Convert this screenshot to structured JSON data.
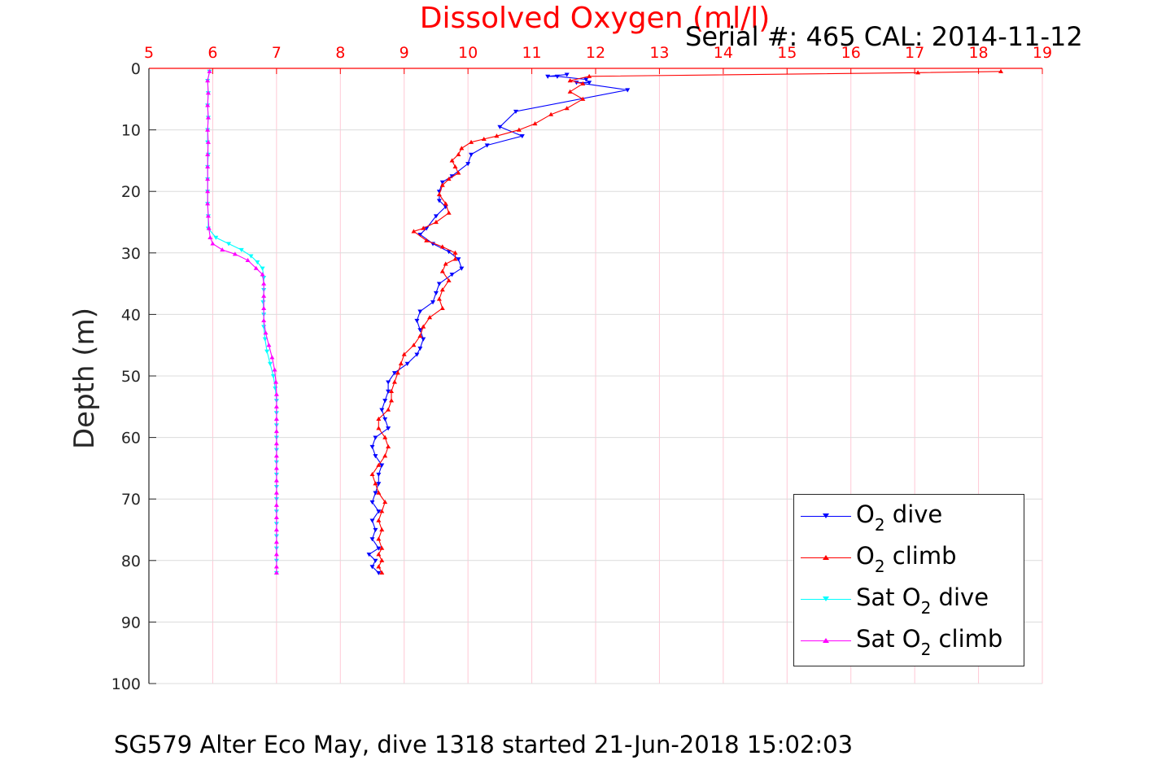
{
  "title": "Dissolved Oxygen (ml/l)",
  "serial": "Serial #: 465  CAL: 2014-11-12",
  "caption": "SG579 Alter Eco May, dive 1318 started 21-Jun-2018 15:02:03",
  "legend": {
    "o2_dive_a": "O",
    "o2_dive_sub": "2",
    "o2_dive_b": " dive",
    "o2_climb_a": "O",
    "o2_climb_sub": "2",
    "o2_climb_b": " climb",
    "sat_dive_a": "Sat O",
    "sat_dive_sub": "2",
    "sat_dive_b": " dive",
    "sat_climb_a": "Sat O",
    "sat_climb_sub": "2",
    "sat_climb_b": " climb"
  },
  "chart_data": {
    "type": "line",
    "title": "Dissolved Oxygen (ml/l)",
    "xlabel": "",
    "ylabel": "Depth (m)",
    "xlim": [
      5,
      19
    ],
    "ylim": [
      0,
      100
    ],
    "y_reversed": true,
    "x_axis_position": "top",
    "x_ticks": [
      5,
      6,
      7,
      8,
      9,
      10,
      11,
      12,
      13,
      14,
      15,
      16,
      17,
      18,
      19
    ],
    "y_ticks": [
      0,
      10,
      20,
      30,
      40,
      50,
      60,
      70,
      80,
      90,
      100
    ],
    "grid": true,
    "legend_position": "bottom-right",
    "series": [
      {
        "name": "O2 dive",
        "color": "#0000ff",
        "marker": "triangle-down",
        "points": [
          [
            11.55,
            1
          ],
          [
            11.25,
            1.3
          ],
          [
            11.4,
            1.3
          ],
          [
            11.85,
            1.8
          ],
          [
            11.9,
            2.3
          ],
          [
            11.7,
            2.3
          ],
          [
            12.5,
            3.5
          ],
          [
            10.75,
            7
          ],
          [
            10.5,
            9.5
          ],
          [
            10.85,
            11
          ],
          [
            10.3,
            12.5
          ],
          [
            10.05,
            14
          ],
          [
            10.0,
            15.5
          ],
          [
            9.75,
            17.5
          ],
          [
            9.6,
            18.5
          ],
          [
            9.55,
            20
          ],
          [
            9.55,
            21.5
          ],
          [
            9.65,
            22.5
          ],
          [
            9.5,
            24
          ],
          [
            9.35,
            26
          ],
          [
            9.25,
            27
          ],
          [
            9.45,
            28.5
          ],
          [
            9.7,
            29.8
          ],
          [
            9.85,
            31
          ],
          [
            9.9,
            32.5
          ],
          [
            9.75,
            33.5
          ],
          [
            9.55,
            35
          ],
          [
            9.5,
            36.5
          ],
          [
            9.45,
            38
          ],
          [
            9.25,
            39.5
          ],
          [
            9.2,
            41
          ],
          [
            9.25,
            42.5
          ],
          [
            9.3,
            44
          ],
          [
            9.25,
            45.5
          ],
          [
            9.2,
            46.5
          ],
          [
            9.05,
            48
          ],
          [
            8.85,
            49.5
          ],
          [
            8.75,
            51
          ],
          [
            8.75,
            52.5
          ],
          [
            8.7,
            54
          ],
          [
            8.65,
            55.5
          ],
          [
            8.7,
            57
          ],
          [
            8.75,
            58.5
          ],
          [
            8.55,
            60
          ],
          [
            8.5,
            61.5
          ],
          [
            8.55,
            63
          ],
          [
            8.65,
            64.5
          ],
          [
            8.6,
            66
          ],
          [
            8.6,
            67.5
          ],
          [
            8.55,
            69
          ],
          [
            8.5,
            70.5
          ],
          [
            8.6,
            72
          ],
          [
            8.5,
            73.5
          ],
          [
            8.55,
            75
          ],
          [
            8.5,
            76.5
          ],
          [
            8.6,
            78
          ],
          [
            8.45,
            79
          ],
          [
            8.55,
            80
          ],
          [
            8.5,
            81
          ],
          [
            8.6,
            82
          ]
        ]
      },
      {
        "name": "O2 climb",
        "color": "#ff0000",
        "marker": "triangle-up",
        "points": [
          [
            18.35,
            0.5
          ],
          [
            17.05,
            0.7
          ],
          [
            11.9,
            1.3
          ],
          [
            11.6,
            2
          ],
          [
            11.8,
            2.5
          ],
          [
            11.6,
            3.8
          ],
          [
            11.8,
            5
          ],
          [
            11.55,
            6.5
          ],
          [
            11.3,
            7.5
          ],
          [
            11.05,
            9
          ],
          [
            10.8,
            10
          ],
          [
            10.45,
            11
          ],
          [
            10.25,
            11.5
          ],
          [
            10.05,
            12
          ],
          [
            9.9,
            13
          ],
          [
            9.85,
            14
          ],
          [
            9.75,
            15
          ],
          [
            9.8,
            16
          ],
          [
            9.85,
            17
          ],
          [
            9.7,
            18
          ],
          [
            9.6,
            19
          ],
          [
            9.55,
            20.5
          ],
          [
            9.65,
            22
          ],
          [
            9.7,
            23.5
          ],
          [
            9.5,
            25
          ],
          [
            9.3,
            26
          ],
          [
            9.15,
            26.5
          ],
          [
            9.35,
            28
          ],
          [
            9.6,
            29
          ],
          [
            9.8,
            30
          ],
          [
            9.8,
            31
          ],
          [
            9.65,
            31.8
          ],
          [
            9.6,
            33
          ],
          [
            9.7,
            34.5
          ],
          [
            9.6,
            36
          ],
          [
            9.55,
            37.5
          ],
          [
            9.6,
            39
          ],
          [
            9.4,
            40.5
          ],
          [
            9.3,
            42
          ],
          [
            9.25,
            43.5
          ],
          [
            9.15,
            45
          ],
          [
            9.0,
            46.5
          ],
          [
            8.95,
            48
          ],
          [
            8.9,
            49.5
          ],
          [
            8.85,
            51
          ],
          [
            8.8,
            52.5
          ],
          [
            8.8,
            54
          ],
          [
            8.75,
            55.5
          ],
          [
            8.6,
            57
          ],
          [
            8.6,
            58.5
          ],
          [
            8.7,
            60
          ],
          [
            8.75,
            61.5
          ],
          [
            8.7,
            63
          ],
          [
            8.6,
            64.5
          ],
          [
            8.5,
            66
          ],
          [
            8.55,
            67.5
          ],
          [
            8.6,
            69
          ],
          [
            8.7,
            70.5
          ],
          [
            8.65,
            72
          ],
          [
            8.6,
            73.5
          ],
          [
            8.65,
            75
          ],
          [
            8.6,
            76.5
          ],
          [
            8.65,
            78
          ],
          [
            8.6,
            79
          ],
          [
            8.65,
            80
          ],
          [
            8.6,
            81
          ],
          [
            8.65,
            82
          ]
        ]
      },
      {
        "name": "Sat O2 dive",
        "color": "#00ffff",
        "marker": "triangle-down",
        "points": [
          [
            5.95,
            0.5
          ],
          [
            5.92,
            2
          ],
          [
            5.93,
            4
          ],
          [
            5.92,
            6
          ],
          [
            5.93,
            8
          ],
          [
            5.92,
            10
          ],
          [
            5.92,
            12
          ],
          [
            5.93,
            14
          ],
          [
            5.92,
            16
          ],
          [
            5.92,
            18
          ],
          [
            5.92,
            20
          ],
          [
            5.92,
            22
          ],
          [
            5.93,
            24
          ],
          [
            5.93,
            26
          ],
          [
            6.05,
            27.5
          ],
          [
            6.25,
            28.5
          ],
          [
            6.45,
            29.5
          ],
          [
            6.6,
            30.5
          ],
          [
            6.7,
            31.5
          ],
          [
            6.78,
            32.5
          ],
          [
            6.8,
            34
          ],
          [
            6.8,
            36
          ],
          [
            6.79,
            38
          ],
          [
            6.8,
            40
          ],
          [
            6.8,
            42
          ],
          [
            6.82,
            44
          ],
          [
            6.85,
            46
          ],
          [
            6.9,
            48
          ],
          [
            6.95,
            50
          ],
          [
            6.98,
            52
          ],
          [
            7.0,
            54
          ],
          [
            7.0,
            56
          ],
          [
            7.0,
            58
          ],
          [
            7.0,
            60
          ],
          [
            7.0,
            62
          ],
          [
            7.0,
            64
          ],
          [
            7.0,
            66
          ],
          [
            7.0,
            68
          ],
          [
            7.0,
            70
          ],
          [
            7.0,
            72
          ],
          [
            7.0,
            74
          ],
          [
            7.0,
            76
          ],
          [
            7.0,
            78
          ],
          [
            7.0,
            80
          ],
          [
            7.0,
            82
          ]
        ]
      },
      {
        "name": "Sat O2 climb",
        "color": "#ff00ff",
        "marker": "triangle-up",
        "points": [
          [
            5.95,
            0.5
          ],
          [
            5.92,
            2
          ],
          [
            5.93,
            4
          ],
          [
            5.92,
            6
          ],
          [
            5.93,
            8
          ],
          [
            5.92,
            10
          ],
          [
            5.93,
            12
          ],
          [
            5.92,
            14
          ],
          [
            5.92,
            16
          ],
          [
            5.92,
            18
          ],
          [
            5.92,
            20
          ],
          [
            5.92,
            22
          ],
          [
            5.93,
            24
          ],
          [
            5.94,
            26
          ],
          [
            5.96,
            27.5
          ],
          [
            6.0,
            28.5
          ],
          [
            6.15,
            29.5
          ],
          [
            6.35,
            30.2
          ],
          [
            6.55,
            31.2
          ],
          [
            6.68,
            32.5
          ],
          [
            6.78,
            33.5
          ],
          [
            6.8,
            35
          ],
          [
            6.8,
            37
          ],
          [
            6.8,
            39
          ],
          [
            6.8,
            41
          ],
          [
            6.83,
            43
          ],
          [
            6.88,
            45
          ],
          [
            6.93,
            47
          ],
          [
            6.97,
            49
          ],
          [
            6.99,
            51
          ],
          [
            7.0,
            53
          ],
          [
            7.0,
            55
          ],
          [
            7.0,
            57
          ],
          [
            7.0,
            59
          ],
          [
            7.0,
            61
          ],
          [
            7.0,
            63
          ],
          [
            7.0,
            65
          ],
          [
            7.0,
            67
          ],
          [
            7.0,
            69
          ],
          [
            7.0,
            71
          ],
          [
            7.0,
            73
          ],
          [
            7.0,
            75
          ],
          [
            7.0,
            77
          ],
          [
            7.0,
            79
          ],
          [
            7.0,
            81
          ],
          [
            7.0,
            82
          ]
        ]
      }
    ]
  }
}
